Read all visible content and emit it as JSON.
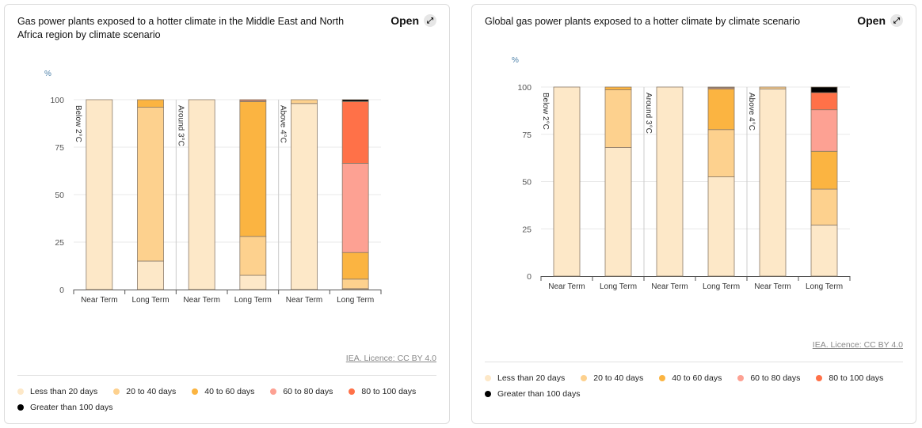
{
  "licence": "IEA. Licence: CC BY 4.0",
  "open_label": "Open",
  "legend": [
    {
      "label": "Less than 20 days",
      "color": "#fde8c8"
    },
    {
      "label": "20 to 40 days",
      "color": "#fdd18e"
    },
    {
      "label": "40 to 60 days",
      "color": "#fbb441"
    },
    {
      "label": "60 to 80 days",
      "color": "#fda193"
    },
    {
      "label": "80 to 100 days",
      "color": "#ff7148"
    },
    {
      "label": "Greater than 100 days",
      "color": "#000000"
    }
  ],
  "chart_data": [
    {
      "type": "bar",
      "stacked": true,
      "title": "Gas power plants exposed to a hotter climate in the Middle East and North Africa region by climate scenario",
      "ylabel": "%",
      "ylim": [
        0,
        100
      ],
      "yticks": [
        0,
        25,
        50,
        75,
        100
      ],
      "grid": true,
      "legend": "bottom",
      "groups": [
        "Below 2°C",
        "Around 3°C",
        "Above 4°C"
      ],
      "categories": [
        "Near Term",
        "Long Term",
        "Near Term",
        "Long Term",
        "Near Term",
        "Long Term"
      ],
      "series": [
        {
          "name": "Less than 20 days",
          "values": [
            100,
            15,
            100,
            7.5,
            98,
            0.5
          ]
        },
        {
          "name": "20 to 40 days",
          "values": [
            0,
            81,
            0,
            20.5,
            2,
            5
          ]
        },
        {
          "name": "40 to 60 days",
          "values": [
            0,
            4,
            0,
            71,
            0,
            14
          ]
        },
        {
          "name": "60 to 80 days",
          "values": [
            0,
            0,
            0,
            0.5,
            0,
            47
          ]
        },
        {
          "name": "80 to 100 days",
          "values": [
            0,
            0,
            0,
            0.5,
            0,
            32.5
          ]
        },
        {
          "name": "Greater than 100 days",
          "values": [
            0,
            0,
            0,
            0,
            0,
            1
          ]
        }
      ]
    },
    {
      "type": "bar",
      "stacked": true,
      "title": "Global gas power plants exposed to a hotter climate by climate scenario",
      "ylabel": "%",
      "ylim": [
        0,
        100
      ],
      "yticks": [
        0,
        25,
        50,
        75,
        100
      ],
      "grid": true,
      "legend": "bottom",
      "groups": [
        "Below 2°C",
        "Around 3°C",
        "Above 4°C"
      ],
      "categories": [
        "Near Term",
        "Long Term",
        "Near Term",
        "Long Term",
        "Near Term",
        "Long Term"
      ],
      "series": [
        {
          "name": "Less than 20 days",
          "values": [
            100,
            68,
            100,
            52.5,
            99,
            27
          ]
        },
        {
          "name": "20 to 40 days",
          "values": [
            0,
            30.5,
            0,
            25,
            1,
            19
          ]
        },
        {
          "name": "40 to 60 days",
          "values": [
            0,
            1.5,
            0,
            21.5,
            0,
            20
          ]
        },
        {
          "name": "60 to 80 days",
          "values": [
            0,
            0,
            0,
            0.5,
            0,
            22
          ]
        },
        {
          "name": "80 to 100 days",
          "values": [
            0,
            0,
            0,
            0.3,
            0,
            9
          ]
        },
        {
          "name": "Greater than 100 days",
          "values": [
            0,
            0,
            0,
            0.2,
            0,
            3
          ]
        }
      ]
    }
  ]
}
